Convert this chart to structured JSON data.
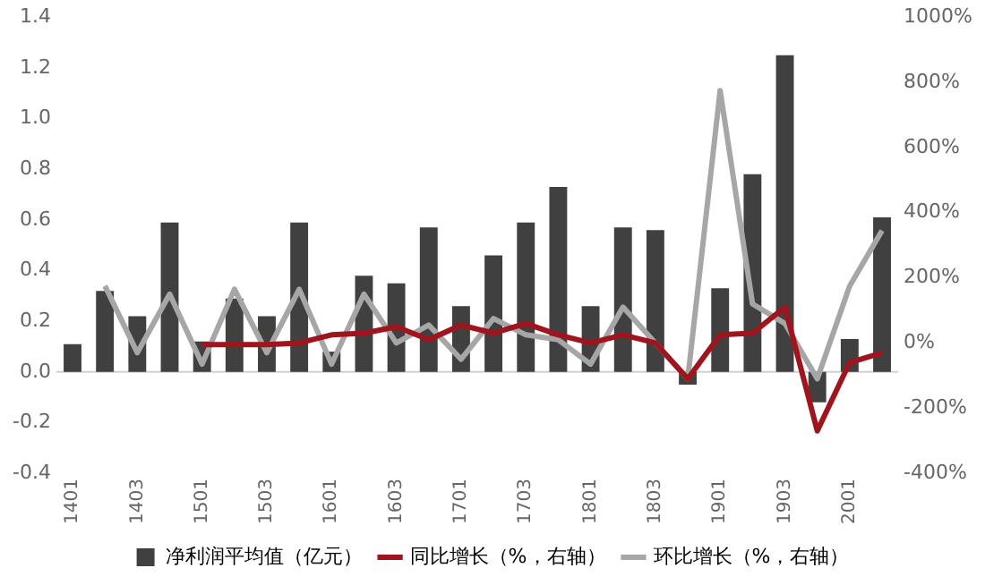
{
  "chart_data": {
    "type": "bar",
    "categories": [
      "1401",
      null,
      "1403",
      null,
      "1501",
      null,
      "1503",
      null,
      "1601",
      null,
      "1603",
      null,
      "1701",
      null,
      "1703",
      null,
      "1801",
      null,
      "1803",
      null,
      "1901",
      null,
      "1903",
      null,
      "2001",
      null
    ],
    "series": [
      {
        "name": "净利润平均值（亿元）",
        "color": "#404040",
        "values": [
          0.11,
          0.32,
          0.22,
          0.59,
          0.12,
          0.29,
          0.22,
          0.59,
          0.08,
          0.38,
          0.35,
          0.57,
          0.26,
          0.46,
          0.59,
          0.73,
          0.26,
          0.57,
          0.56,
          -0.05,
          0.33,
          0.78,
          1.25,
          -0.12,
          0.13,
          0.61
        ]
      },
      {
        "name": "同比增长（%，右轴）",
        "type": "line",
        "axis": "y2",
        "color": "#a0141e",
        "values": [
          null,
          null,
          null,
          null,
          -5,
          -5,
          -5,
          0,
          25,
          30,
          50,
          10,
          55,
          30,
          60,
          25,
          0,
          25,
          0,
          -110,
          25,
          30,
          110,
          -270,
          -60,
          -30
        ]
      },
      {
        "name": "环比增长（%，右轴）",
        "type": "line",
        "axis": "y2",
        "color": "#a6a6a6",
        "values": [
          null,
          175,
          -30,
          150,
          -65,
          165,
          -30,
          165,
          -65,
          150,
          0,
          55,
          -50,
          75,
          25,
          10,
          -65,
          110,
          0,
          -110,
          775,
          120,
          60,
          -110,
          175,
          345
        ]
      }
    ],
    "ylim": [
      -0.4,
      1.4
    ],
    "yticks": [
      {
        "value": -0.4,
        "label": "-0.4"
      },
      {
        "value": -0.2,
        "label": "-0.2"
      },
      {
        "value": 0,
        "label": "0.0"
      },
      {
        "value": 0.2,
        "label": "0.2"
      },
      {
        "value": 0.4,
        "label": "0.4"
      },
      {
        "value": 0.6,
        "label": "0.6"
      },
      {
        "value": 0.8,
        "label": "0.8"
      },
      {
        "value": 1,
        "label": "1.0"
      },
      {
        "value": 1.2,
        "label": "1.2"
      },
      {
        "value": 1.4,
        "label": "1.4"
      }
    ],
    "y2lim": [
      -400,
      1000
    ],
    "y2ticks": [
      {
        "value": -400,
        "label": "-400%"
      },
      {
        "value": -200,
        "label": "-200%"
      },
      {
        "value": 0,
        "label": "0%"
      },
      {
        "value": 200,
        "label": "200%"
      },
      {
        "value": 400,
        "label": "400%"
      },
      {
        "value": 600,
        "label": "600%"
      },
      {
        "value": 800,
        "label": "800%"
      },
      {
        "value": 1000,
        "label": "1000%"
      }
    ],
    "legend": "bottom",
    "marker": "none",
    "line_style": "solid"
  }
}
